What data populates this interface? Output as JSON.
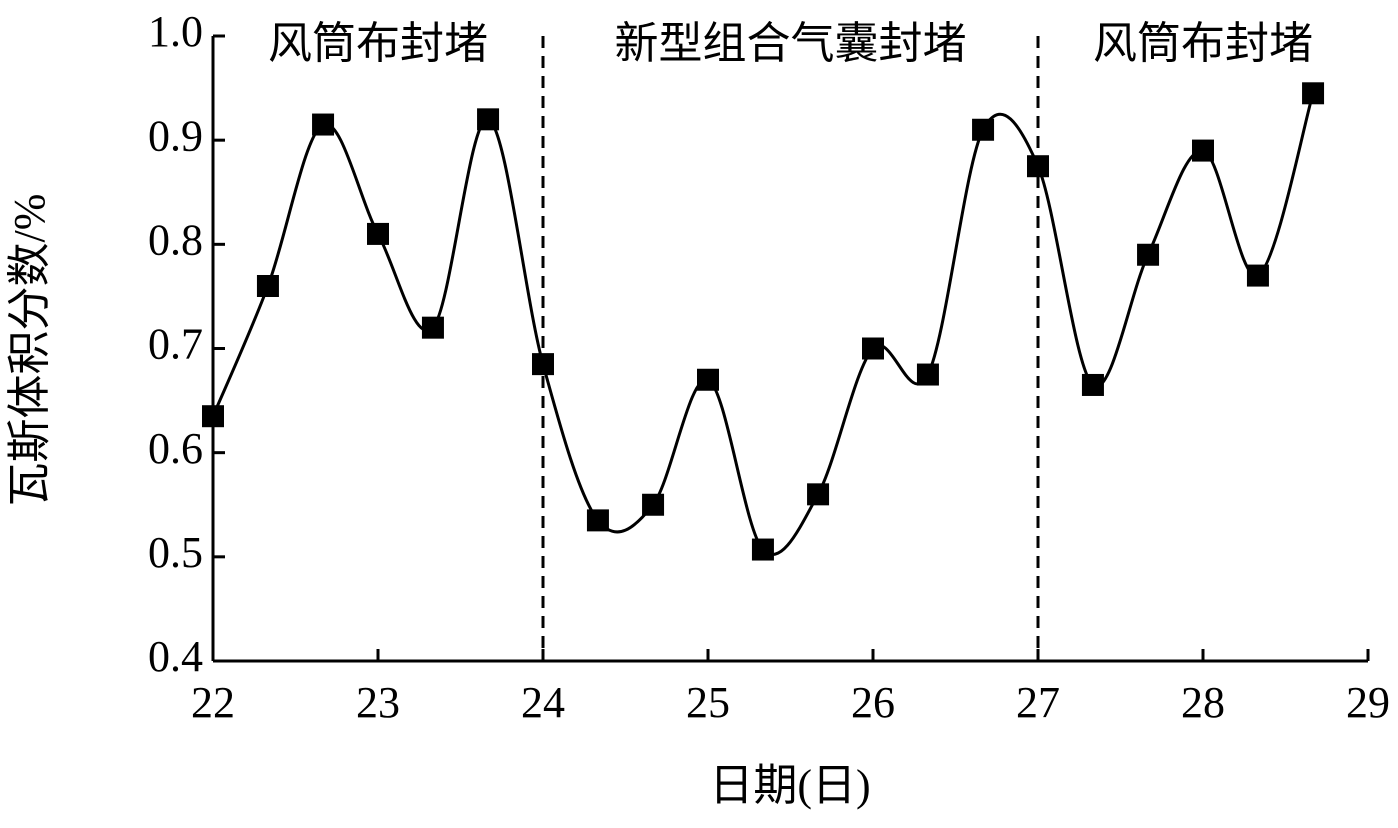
{
  "chart_data": {
    "type": "line",
    "x_label": "日期(日)",
    "y_label": "瓦斯体积分数/%",
    "x": [
      22,
      22.333,
      22.667,
      23,
      23.333,
      23.667,
      24,
      24.333,
      24.667,
      25,
      25.333,
      25.667,
      26,
      26.333,
      26.667,
      27,
      27.333,
      27.667,
      28,
      28.333,
      28.667
    ],
    "series": [
      {
        "color": "#000000",
        "values": [
          0.635,
          0.76,
          0.915,
          0.81,
          0.72,
          0.92,
          0.685,
          0.535,
          0.55,
          0.67,
          0.507,
          0.56,
          0.7,
          0.675,
          0.91,
          0.875,
          0.665,
          0.79,
          0.89,
          0.77,
          0.945
        ]
      }
    ],
    "xlim": [
      22,
      29
    ],
    "xticks": [
      22,
      23,
      24,
      25,
      26,
      27,
      28,
      29
    ],
    "ylim": [
      0.4,
      1
    ],
    "yticks": [
      0.4,
      0.5,
      0.6,
      0.7,
      0.8,
      0.9,
      {
        "value": 1,
        "label": "1.0"
      }
    ],
    "dividers": [
      24,
      27
    ],
    "regions": [
      "风筒布封堵",
      "新型组合气囊封堵",
      "风筒布封堵"
    ]
  }
}
